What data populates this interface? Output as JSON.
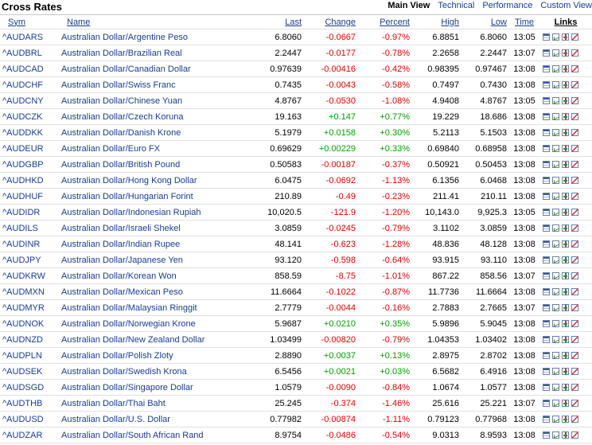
{
  "header": {
    "title": "Cross Rates",
    "views": [
      {
        "label": "Main View",
        "active": true
      },
      {
        "label": "Technical",
        "active": false
      },
      {
        "label": "Performance",
        "active": false
      },
      {
        "label": "Custom View",
        "active": false
      }
    ]
  },
  "columns": {
    "sym": "Sym",
    "name": "Name",
    "last": "Last",
    "change": "Change",
    "percent": "Percent",
    "high": "High",
    "low": "Low",
    "time": "Time",
    "links": "Links"
  },
  "link_icons": [
    "quote-icon",
    "chart-icon",
    "technical-icon",
    "news-icon"
  ],
  "colors": {
    "link": "#1a3c8f",
    "negative": "#e00000",
    "positive": "#00a000"
  },
  "rows": [
    {
      "sym": "^AUDARS",
      "name": "Australian Dollar/Argentine Peso",
      "last": "6.8060",
      "change": "-0.0667",
      "percent": "-0.97%",
      "high": "6.8851",
      "low": "6.8060",
      "time": "13:05",
      "dir": "neg"
    },
    {
      "sym": "^AUDBRL",
      "name": "Australian Dollar/Brazilian Real",
      "last": "2.2447",
      "change": "-0.0177",
      "percent": "-0.78%",
      "high": "2.2658",
      "low": "2.2447",
      "time": "13:07",
      "dir": "neg"
    },
    {
      "sym": "^AUDCAD",
      "name": "Australian Dollar/Canadian Dollar",
      "last": "0.97639",
      "change": "-0.00416",
      "percent": "-0.42%",
      "high": "0.98395",
      "low": "0.97467",
      "time": "13:08",
      "dir": "neg"
    },
    {
      "sym": "^AUDCHF",
      "name": "Australian Dollar/Swiss Franc",
      "last": "0.7435",
      "change": "-0.0043",
      "percent": "-0.58%",
      "high": "0.7497",
      "low": "0.7430",
      "time": "13:08",
      "dir": "neg"
    },
    {
      "sym": "^AUDCNY",
      "name": "Australian Dollar/Chinese Yuan",
      "last": "4.8767",
      "change": "-0.0530",
      "percent": "-1.08%",
      "high": "4.9408",
      "low": "4.8767",
      "time": "13:05",
      "dir": "neg"
    },
    {
      "sym": "^AUDCZK",
      "name": "Australian Dollar/Czech Koruna",
      "last": "19.163",
      "change": "+0.147",
      "percent": "+0.77%",
      "high": "19.229",
      "low": "18.686",
      "time": "13:08",
      "dir": "pos"
    },
    {
      "sym": "^AUDDKK",
      "name": "Australian Dollar/Danish Krone",
      "last": "5.1979",
      "change": "+0.0158",
      "percent": "+0.30%",
      "high": "5.2113",
      "low": "5.1503",
      "time": "13:08",
      "dir": "pos"
    },
    {
      "sym": "^AUDEUR",
      "name": "Australian Dollar/Euro FX",
      "last": "0.69629",
      "change": "+0.00229",
      "percent": "+0.33%",
      "high": "0.69840",
      "low": "0.68958",
      "time": "13:08",
      "dir": "pos"
    },
    {
      "sym": "^AUDGBP",
      "name": "Australian Dollar/British Pound",
      "last": "0.50583",
      "change": "-0.00187",
      "percent": "-0.37%",
      "high": "0.50921",
      "low": "0.50453",
      "time": "13:08",
      "dir": "neg"
    },
    {
      "sym": "^AUDHKD",
      "name": "Australian Dollar/Hong Kong Dollar",
      "last": "6.0475",
      "change": "-0.0692",
      "percent": "-1.13%",
      "high": "6.1356",
      "low": "6.0468",
      "time": "13:08",
      "dir": "neg"
    },
    {
      "sym": "^AUDHUF",
      "name": "Australian Dollar/Hungarian Forint",
      "last": "210.89",
      "change": "-0.49",
      "percent": "-0.23%",
      "high": "211.41",
      "low": "210.11",
      "time": "13:08",
      "dir": "neg"
    },
    {
      "sym": "^AUDIDR",
      "name": "Australian Dollar/Indonesian Rupiah",
      "last": "10,020.5",
      "change": "-121.9",
      "percent": "-1.20%",
      "high": "10,143.0",
      "low": "9,925.3",
      "time": "13:05",
      "dir": "neg"
    },
    {
      "sym": "^AUDILS",
      "name": "Australian Dollar/Israeli Shekel",
      "last": "3.0859",
      "change": "-0.0245",
      "percent": "-0.79%",
      "high": "3.1102",
      "low": "3.0859",
      "time": "13:08",
      "dir": "neg"
    },
    {
      "sym": "^AUDINR",
      "name": "Australian Dollar/Indian Rupee",
      "last": "48.141",
      "change": "-0.623",
      "percent": "-1.28%",
      "high": "48.836",
      "low": "48.128",
      "time": "13:08",
      "dir": "neg"
    },
    {
      "sym": "^AUDJPY",
      "name": "Australian Dollar/Japanese Yen",
      "last": "93.120",
      "change": "-0.598",
      "percent": "-0.64%",
      "high": "93.915",
      "low": "93.110",
      "time": "13:08",
      "dir": "neg"
    },
    {
      "sym": "^AUDKRW",
      "name": "Australian Dollar/Korean Won",
      "last": "858.59",
      "change": "-8.75",
      "percent": "-1.01%",
      "high": "867.22",
      "low": "858.56",
      "time": "13:07",
      "dir": "neg"
    },
    {
      "sym": "^AUDMXN",
      "name": "Australian Dollar/Mexican Peso",
      "last": "11.6664",
      "change": "-0.1022",
      "percent": "-0.87%",
      "high": "11.7736",
      "low": "11.6664",
      "time": "13:08",
      "dir": "neg"
    },
    {
      "sym": "^AUDMYR",
      "name": "Australian Dollar/Malaysian Ringgit",
      "last": "2.7779",
      "change": "-0.0044",
      "percent": "-0.16%",
      "high": "2.7883",
      "low": "2.7665",
      "time": "13:07",
      "dir": "neg"
    },
    {
      "sym": "^AUDNOK",
      "name": "Australian Dollar/Norwegian Krone",
      "last": "5.9687",
      "change": "+0.0210",
      "percent": "+0.35%",
      "high": "5.9896",
      "low": "5.9045",
      "time": "13:08",
      "dir": "pos"
    },
    {
      "sym": "^AUDNZD",
      "name": "Australian Dollar/New Zealand Dollar",
      "last": "1.03499",
      "change": "-0.00820",
      "percent": "-0.79%",
      "high": "1.04353",
      "low": "1.03402",
      "time": "13:08",
      "dir": "neg"
    },
    {
      "sym": "^AUDPLN",
      "name": "Australian Dollar/Polish Zloty",
      "last": "2.8890",
      "change": "+0.0037",
      "percent": "+0.13%",
      "high": "2.8975",
      "low": "2.8702",
      "time": "13:08",
      "dir": "pos"
    },
    {
      "sym": "^AUDSEK",
      "name": "Australian Dollar/Swedish Krona",
      "last": "6.5456",
      "change": "+0.0021",
      "percent": "+0.03%",
      "high": "6.5682",
      "low": "6.4916",
      "time": "13:08",
      "dir": "pos"
    },
    {
      "sym": "^AUDSGD",
      "name": "Australian Dollar/Singapore Dollar",
      "last": "1.0579",
      "change": "-0.0090",
      "percent": "-0.84%",
      "high": "1.0674",
      "low": "1.0577",
      "time": "13:08",
      "dir": "neg"
    },
    {
      "sym": "^AUDTHB",
      "name": "Australian Dollar/Thai Baht",
      "last": "25.245",
      "change": "-0.374",
      "percent": "-1.46%",
      "high": "25.616",
      "low": "25.221",
      "time": "13:07",
      "dir": "neg"
    },
    {
      "sym": "^AUDUSD",
      "name": "Australian Dollar/U.S. Dollar",
      "last": "0.77982",
      "change": "-0.00874",
      "percent": "-1.11%",
      "high": "0.79123",
      "low": "0.77968",
      "time": "13:08",
      "dir": "neg"
    },
    {
      "sym": "^AUDZAR",
      "name": "Australian Dollar/South African Rand",
      "last": "8.9754",
      "change": "-0.0486",
      "percent": "-0.54%",
      "high": "9.0313",
      "low": "8.9593",
      "time": "13:08",
      "dir": "neg"
    }
  ]
}
